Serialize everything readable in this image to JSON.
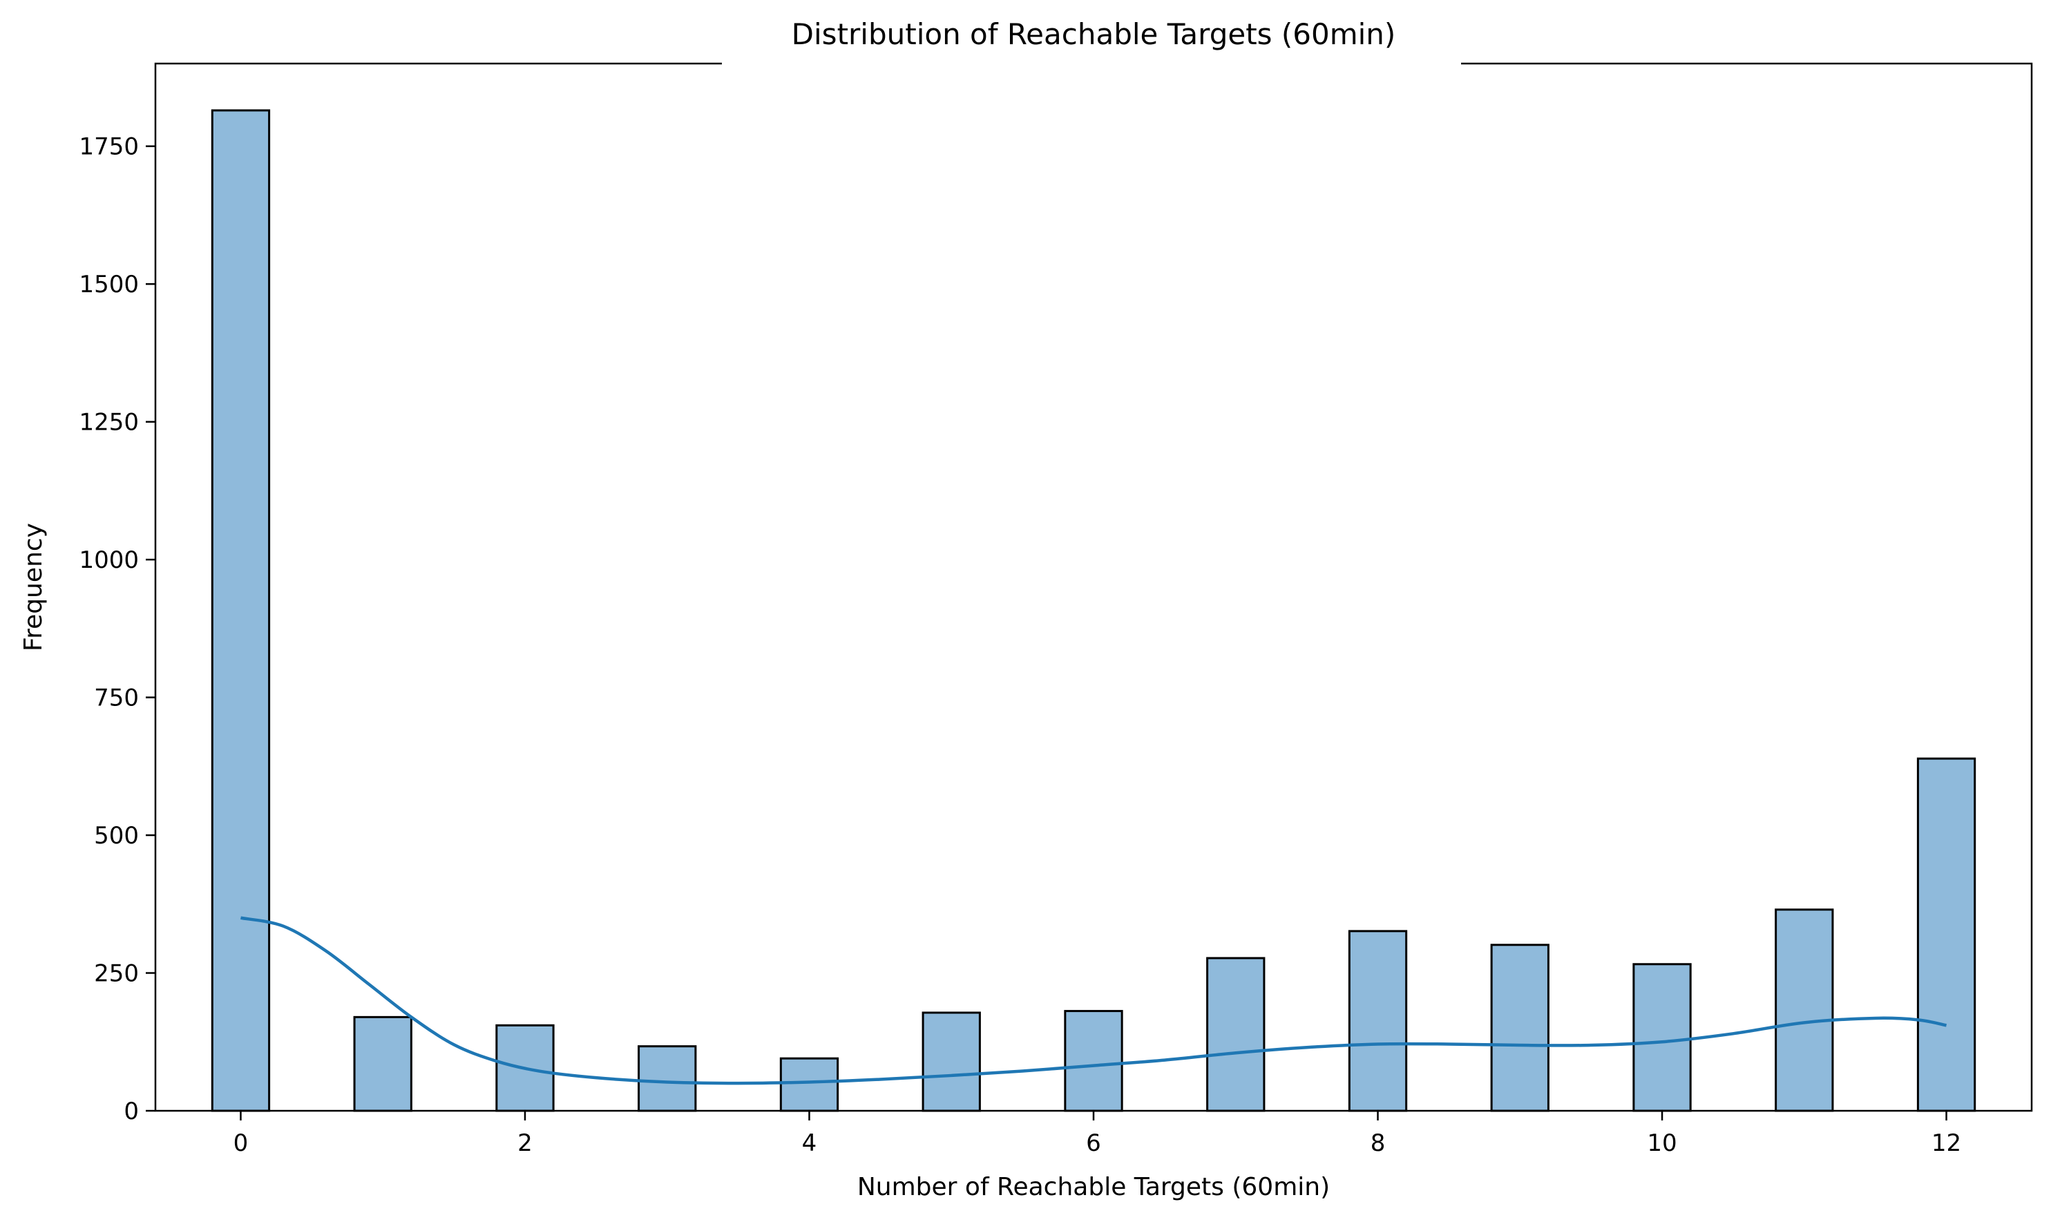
{
  "chart_data": {
    "type": "bar",
    "title": "Distribution of Reachable Targets (60min)",
    "xlabel": "Number of Reachable Targets (60min)",
    "ylabel": "Frequency",
    "xlim": [
      -0.6,
      12.6
    ],
    "ylim": [
      0,
      1900
    ],
    "xticks": [
      0,
      2,
      4,
      6,
      8,
      10,
      12
    ],
    "yticks": [
      0,
      250,
      500,
      750,
      1000,
      1250,
      1500,
      1750
    ],
    "bin_width": 0.4,
    "bars": [
      {
        "x": 0,
        "value": 1815
      },
      {
        "x": 1,
        "value": 170
      },
      {
        "x": 2,
        "value": 155
      },
      {
        "x": 3,
        "value": 117
      },
      {
        "x": 4,
        "value": 95
      },
      {
        "x": 5,
        "value": 178
      },
      {
        "x": 6,
        "value": 181
      },
      {
        "x": 7,
        "value": 277
      },
      {
        "x": 8,
        "value": 326
      },
      {
        "x": 9,
        "value": 301
      },
      {
        "x": 10,
        "value": 266
      },
      {
        "x": 11,
        "value": 365
      },
      {
        "x": 12,
        "value": 639
      }
    ],
    "kde": {
      "x": [
        0,
        0.3,
        0.6,
        0.9,
        1.2,
        1.5,
        1.8,
        2.1,
        2.5,
        3.0,
        3.5,
        4.0,
        4.5,
        5.0,
        5.5,
        6.0,
        6.5,
        7.0,
        7.5,
        8.0,
        8.5,
        9.0,
        9.5,
        10.0,
        10.5,
        11.0,
        11.5,
        11.8,
        12.0
      ],
      "y": [
        350,
        335,
        290,
        230,
        170,
        120,
        90,
        72,
        60,
        52,
        50,
        52,
        57,
        64,
        72,
        82,
        92,
        105,
        115,
        121,
        121,
        119,
        119,
        125,
        140,
        160,
        168,
        165,
        155
      ]
    },
    "colors": {
      "bar_fill": "#8fbadb",
      "kde_line": "#1f77b4"
    },
    "grid": false
  }
}
